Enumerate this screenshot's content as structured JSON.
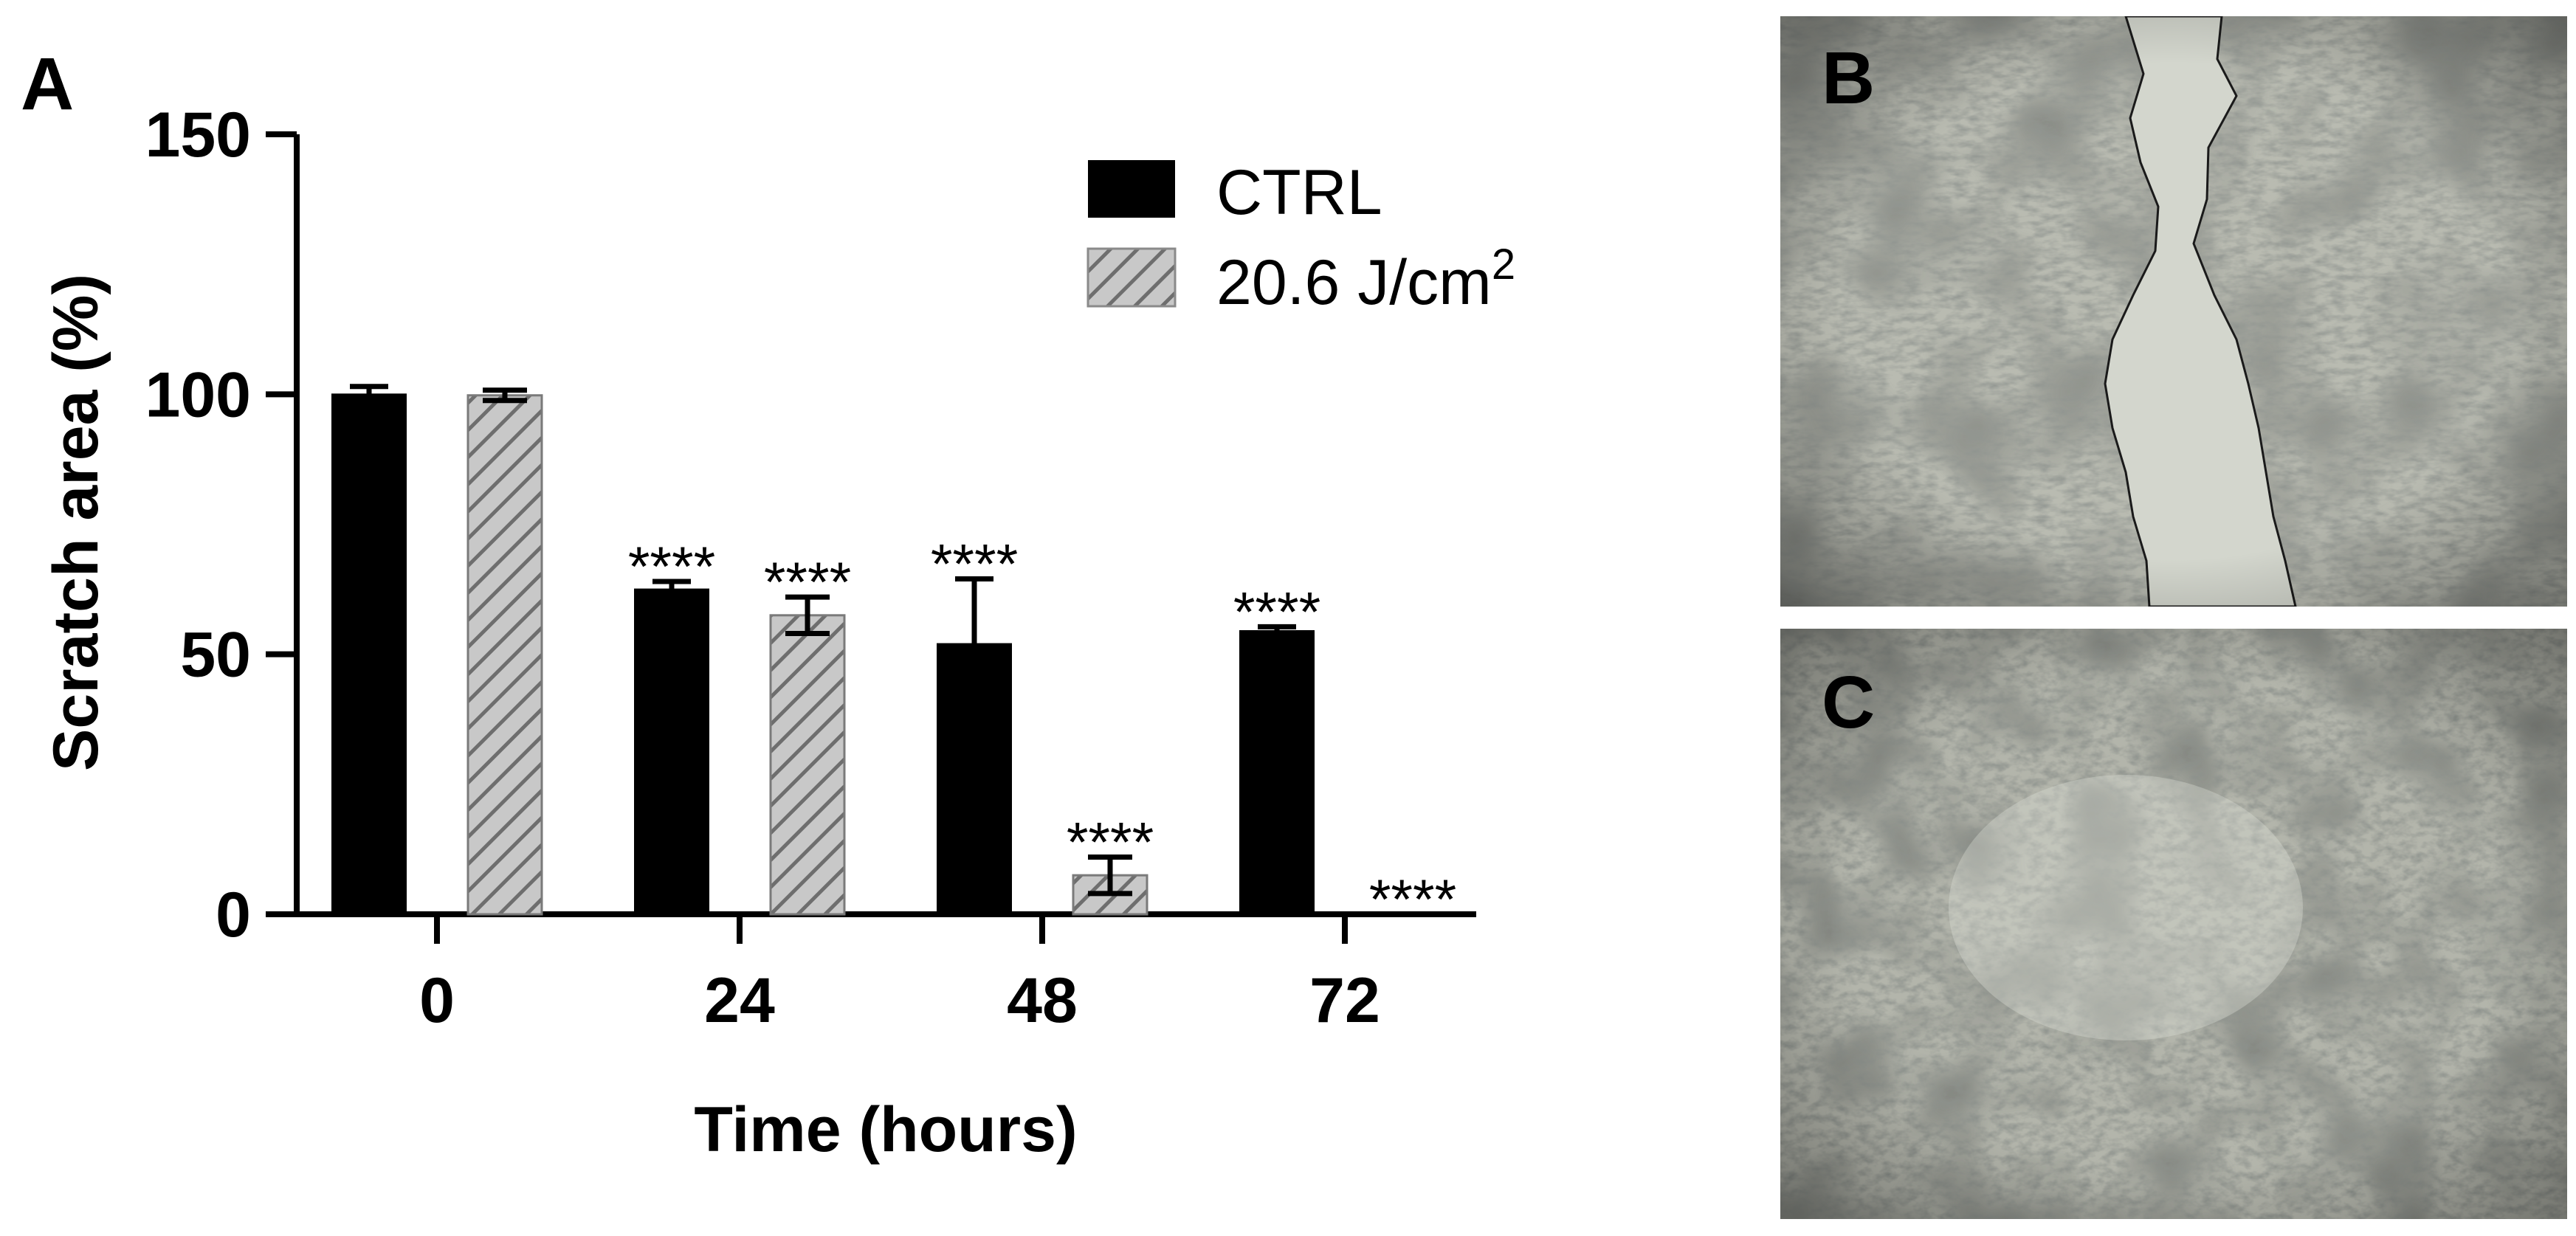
{
  "panels": {
    "a_label": "A",
    "b_label": "B",
    "c_label": "C"
  },
  "chart_data": {
    "type": "bar",
    "categories": [
      "0",
      "24",
      "48",
      "72"
    ],
    "series": [
      {
        "name": "CTRL",
        "pattern": "solid",
        "color": "#000000",
        "values": [
          100,
          62.5,
          52,
          54.5
        ],
        "errors": [
          1.5,
          1.5,
          12.5,
          0.8
        ],
        "annotations": [
          "",
          "****",
          "****",
          "****"
        ]
      },
      {
        "name": "20.6 J/cm²",
        "pattern": "hatched",
        "color": "#9a9a9a",
        "values": [
          99.8,
          57.5,
          7.5,
          0
        ],
        "errors": [
          1.0,
          3.5,
          3.5,
          0
        ],
        "annotations": [
          "",
          "****",
          "****",
          "****"
        ]
      }
    ],
    "legend": {
      "ctrl": "CTRL",
      "treated_base": "20.6 J/cm",
      "treated_sup": "2"
    },
    "xlabel": "Time (hours)",
    "ylabel": "Scratch area (%)",
    "ylim": [
      0,
      150
    ],
    "yticks": [
      "0",
      "50",
      "100",
      "150"
    ],
    "grid": false,
    "legend_position": "top-right"
  }
}
